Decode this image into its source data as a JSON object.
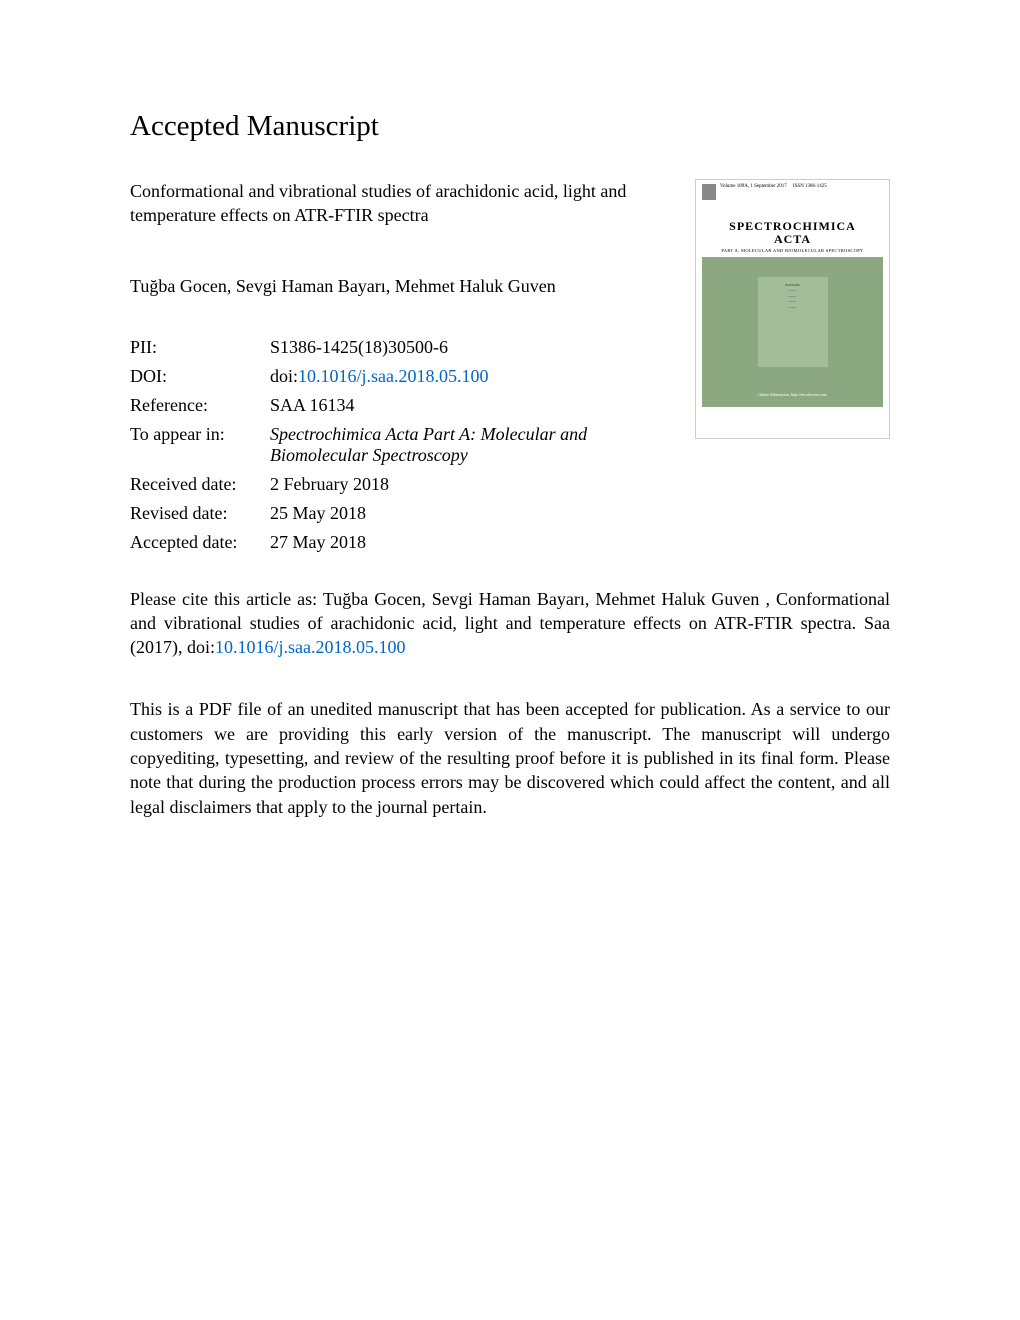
{
  "heading": "Accepted Manuscript",
  "article_title": "Conformational and vibrational studies of arachidonic acid, light and temperature effects on ATR-FTIR spectra",
  "authors": "Tuğba Gocen, Sevgi Haman Bayarı, Mehmet Haluk Guven",
  "metadata": {
    "pii_label": "PII:",
    "pii_value": "S1386-1425(18)30500-6",
    "doi_label": "DOI:",
    "doi_prefix": "doi:",
    "doi_link": "10.1016/j.saa.2018.05.100",
    "reference_label": "Reference:",
    "reference_value": "SAA 16134",
    "appear_label": "To appear in:",
    "appear_value": "Spectrochimica Acta Part A: Molecular and Biomolecular Spectroscopy",
    "received_label": "Received date:",
    "received_value": "2 February 2018",
    "revised_label": "Revised date:",
    "revised_value": "25 May 2018",
    "accepted_label": "Accepted date:",
    "accepted_value": "27 May 2018"
  },
  "citation": {
    "prefix": "Please cite this article as: Tuğba Gocen, Sevgi Haman Bayarı, Mehmet Haluk Guven , Conformational and vibrational studies of arachidonic acid, light and temperature effects on ATR-FTIR spectra. Saa (2017), doi:",
    "link": "10.1016/j.saa.2018.05.100"
  },
  "disclaimer": "This is a PDF file of an unedited manuscript that has been accepted for publication. As a service to our customers we are providing this early version of the manuscript. The manuscript will undergo copyediting, typesetting, and review of the resulting proof before it is published in its final form. Please note that during the production process errors may be discovered which could affect the content, and all legal disclaimers that apply to the journal pertain.",
  "cover": {
    "volume_info": "Volume 189A, 1 September 2017",
    "issn": "ISSN 1386-1425",
    "name_line1": "SPECTROCHIMICA",
    "name_line2": "ACTA",
    "subtitle": "PART A: MOLECULAR AND BIOMOLECULAR SPECTROSCOPY",
    "editors_label": "EDITORS",
    "footer": "Online Submission: http://ees.elsevier.com",
    "background_color": "#8ba881",
    "panel_color": "#a3bd9a"
  }
}
